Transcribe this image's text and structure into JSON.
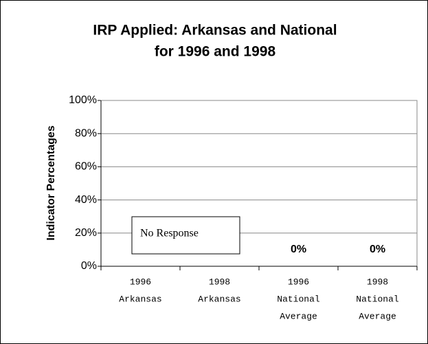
{
  "chart_data": {
    "type": "bar",
    "title": [
      "IRP Applied: Arkansas and National",
      "for 1996 and 1998"
    ],
    "y_label": "Indicator Percentages",
    "categories": [
      [
        "1996",
        "Arkansas"
      ],
      [
        "1998",
        "Arkansas"
      ],
      [
        "1996",
        "National",
        "Average"
      ],
      [
        "1998",
        "National",
        "Average"
      ]
    ],
    "values": [
      null,
      null,
      0,
      0
    ],
    "value_labels": [
      null,
      null,
      "0%",
      "0%"
    ],
    "color": "#9999ff",
    "annotation": "No Response",
    "ylim": [
      0,
      100
    ],
    "yticks": [
      {
        "value": 0,
        "label": "0%"
      },
      {
        "value": 20,
        "label": "20%"
      },
      {
        "value": 40,
        "label": "40%"
      },
      {
        "value": 60,
        "label": "60%"
      },
      {
        "value": 80,
        "label": "80%"
      },
      {
        "value": 100,
        "label": "100%"
      }
    ],
    "grid": true
  }
}
